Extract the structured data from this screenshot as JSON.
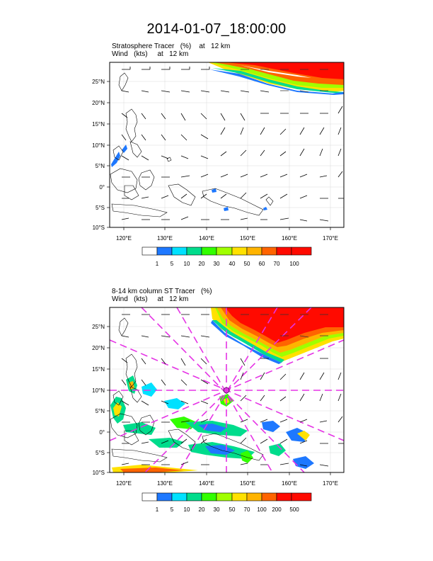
{
  "title": "2014-01-07_18:00:00",
  "panels": [
    {
      "title_line1": "Stratosphere Tracer   (%)    at   12 km",
      "title_line2": "Wind   (kts)     at   12 km",
      "lat_ticks": [
        "25°N",
        "20°N",
        "15°N",
        "10°N",
        "5°N",
        "0°",
        "5°S",
        "10°S"
      ],
      "lon_ticks": [
        "120°E",
        "130°E",
        "140°E",
        "150°E",
        "160°E",
        "170°E"
      ],
      "colorbar_labels": [
        "1",
        "5",
        "10",
        "20",
        "30",
        "40",
        "50",
        "60",
        "70",
        "100"
      ],
      "colorbar_colors": [
        "#ffffff",
        "#1e78ff",
        "#00e1ff",
        "#00dc8c",
        "#32ff00",
        "#a0ff00",
        "#ffe100",
        "#ffb400",
        "#ff6400",
        "#ff0a00"
      ]
    },
    {
      "title_line1": "8-14 km column ST Tracer   (%)",
      "title_line2": "Wind   (kts)     at   12 km",
      "lat_ticks": [
        "25°N",
        "20°N",
        "15°N",
        "10°N",
        "5°N",
        "0°",
        "5°S",
        "10°S"
      ],
      "lon_ticks": [
        "120°E",
        "130°E",
        "140°E",
        "150°E",
        "160°E",
        "170°E"
      ],
      "colorbar_labels": [
        "1",
        "5",
        "10",
        "20",
        "30",
        "50",
        "70",
        "100",
        "200",
        "500"
      ],
      "colorbar_colors": [
        "#ffffff",
        "#1e78ff",
        "#00e1ff",
        "#00dc8c",
        "#32ff00",
        "#a0ff00",
        "#ffe100",
        "#ffb400",
        "#ff6400",
        "#ff0a00"
      ]
    }
  ]
}
